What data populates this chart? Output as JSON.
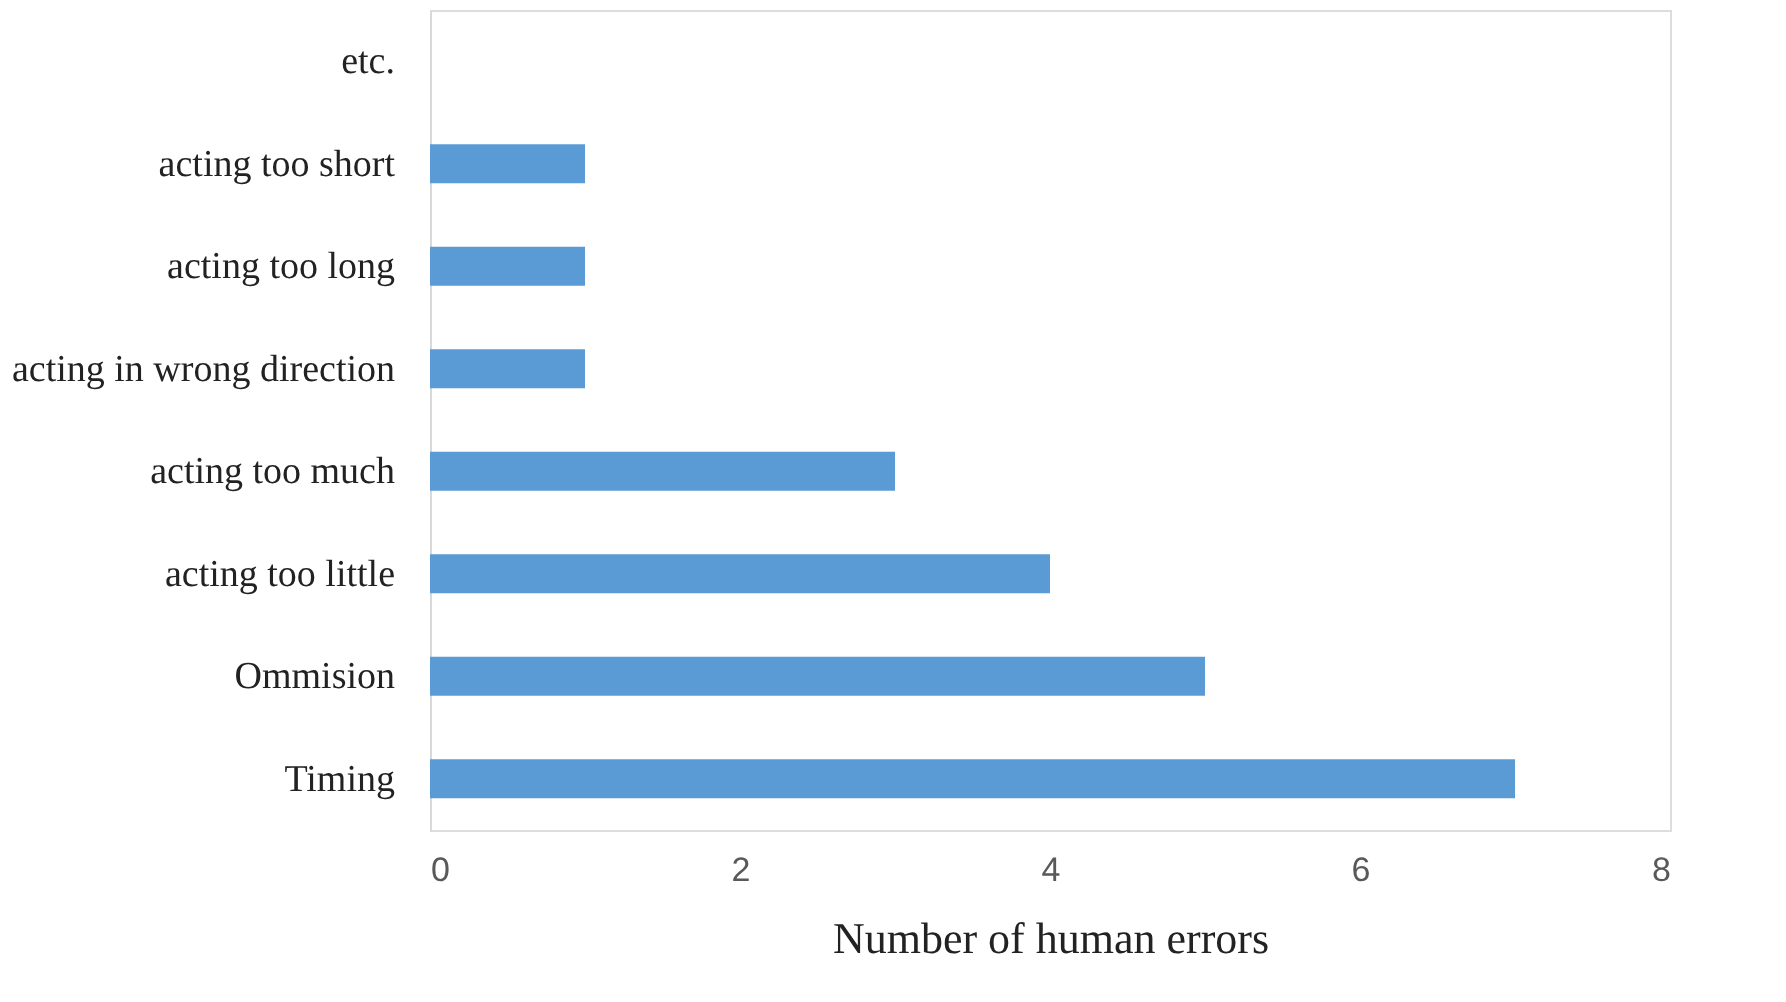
{
  "chart_data": {
    "type": "bar",
    "orientation": "horizontal",
    "categories": [
      "etc.",
      "acting too short",
      "acting too long",
      "acting in wrong direction",
      "acting too much",
      "acting too little",
      "Ommision",
      "Timing"
    ],
    "values": [
      0,
      1,
      1,
      1,
      3,
      4,
      5,
      7
    ],
    "color": "#5b9bd5",
    "xlabel": "Number of human errors",
    "xlim": [
      0,
      8
    ],
    "xticks": [
      0,
      2,
      4,
      6,
      8
    ],
    "grid": false
  }
}
